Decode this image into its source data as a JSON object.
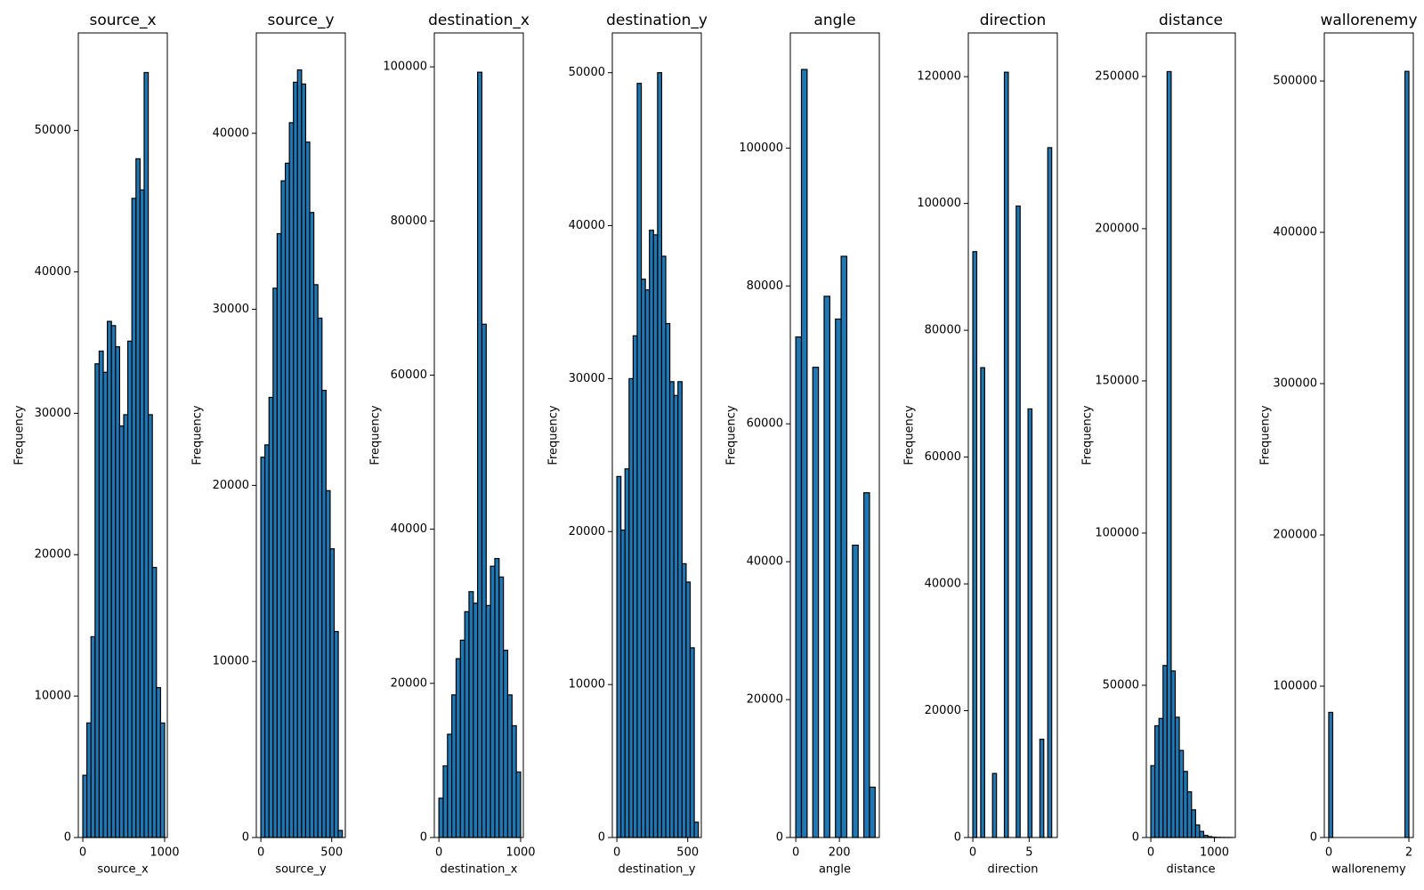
{
  "chart_data": [
    {
      "type": "histogram",
      "title": "source_x",
      "xlabel": "source_x",
      "ylabel": "Frequency",
      "color": "#1f77b4",
      "edgecolor": "#000000",
      "bins": [
        0,
        50,
        100,
        150,
        200,
        250,
        300,
        350,
        400,
        450,
        500,
        550,
        600,
        650,
        700,
        750,
        800,
        850,
        900,
        950,
        1000
      ],
      "counts": [
        4400,
        8100,
        14200,
        33500,
        34400,
        32900,
        36500,
        36200,
        34700,
        29100,
        29900,
        35100,
        45200,
        48000,
        45800,
        54100,
        29900,
        19100,
        10600,
        8100
      ],
      "xlim": [
        -55,
        1033
      ],
      "xticks": [
        0,
        1000
      ],
      "ylim": [
        0,
        56900
      ],
      "yticks": [
        0,
        10000,
        20000,
        30000,
        40000,
        50000
      ]
    },
    {
      "type": "histogram",
      "title": "source_y",
      "xlabel": "source_y",
      "ylabel": "Frequency",
      "color": "#1f77b4",
      "edgecolor": "#000000",
      "bins": [
        0,
        28.75,
        57.5,
        86.25,
        115,
        143.75,
        172.5,
        201.25,
        230,
        258.75,
        287.5,
        316.25,
        345,
        373.75,
        402.5,
        431.25,
        460,
        488.75,
        517.5,
        546.25,
        575
      ],
      "counts": [
        21600,
        22300,
        25000,
        31200,
        34300,
        37300,
        38300,
        40600,
        42900,
        43600,
        42800,
        39500,
        35500,
        31400,
        29500,
        25400,
        19700,
        16400,
        11700,
        400
      ],
      "xlim": [
        -32,
        596
      ],
      "xticks": [
        0,
        500
      ],
      "ylim": [
        0,
        45700
      ],
      "yticks": [
        0,
        10000,
        20000,
        30000,
        40000
      ]
    },
    {
      "type": "histogram",
      "title": "destination_x",
      "xlabel": "destination_x",
      "ylabel": "Frequency",
      "color": "#1f77b4",
      "edgecolor": "#000000",
      "bins": [
        0,
        52.6,
        105.3,
        157.9,
        210.5,
        263.2,
        315.8,
        368.4,
        421.1,
        473.7,
        526.3,
        578.9,
        631.6,
        684.2,
        736.8,
        789.5,
        842.1,
        894.7,
        947.4,
        1000
      ],
      "counts": [
        5100,
        9300,
        13400,
        18500,
        23200,
        25600,
        29300,
        31900,
        30400,
        99300,
        66600,
        30100,
        35200,
        36200,
        33800,
        24300,
        18500,
        14500,
        8500
      ],
      "xlim": [
        -56,
        1033
      ],
      "xticks": [
        0,
        1000
      ],
      "ylim": [
        0,
        104400
      ],
      "yticks": [
        0,
        20000,
        40000,
        60000,
        80000,
        100000
      ]
    },
    {
      "type": "histogram",
      "title": "destination_y",
      "xlabel": "destination_y",
      "ylabel": "Frequency",
      "color": "#1f77b4",
      "edgecolor": "#000000",
      "bins": [
        0,
        28.75,
        57.5,
        86.25,
        115,
        143.75,
        172.5,
        201.25,
        230,
        258.75,
        287.5,
        316.25,
        345,
        373.75,
        402.5,
        431.25,
        460,
        488.75,
        517.5,
        546.25,
        575
      ],
      "counts": [
        23600,
        20100,
        24100,
        30000,
        32800,
        49300,
        36500,
        35800,
        39700,
        39400,
        50000,
        38000,
        33600,
        29800,
        28900,
        29800,
        17900,
        16700,
        12400,
        1000
      ],
      "xlim": [
        -32,
        596
      ],
      "xticks": [
        0,
        500
      ],
      "ylim": [
        0,
        52600
      ],
      "yticks": [
        0,
        10000,
        20000,
        30000,
        40000,
        50000
      ]
    },
    {
      "type": "histogram",
      "title": "angle",
      "xlabel": "angle",
      "ylabel": "Frequency",
      "color": "#1f77b4",
      "edgecolor": "#000000",
      "bins": [
        0,
        26,
        52,
        78,
        104,
        130,
        156,
        182,
        208,
        234,
        260,
        286,
        312,
        338,
        364
      ],
      "counts": [
        72600,
        111400,
        0,
        68200,
        0,
        78500,
        0,
        75200,
        84300,
        0,
        42400,
        0,
        50000,
        7300
      ],
      "xlim": [
        -25,
        383
      ],
      "xticks": [
        0,
        200
      ],
      "ylim": [
        0,
        116700
      ],
      "yticks": [
        0,
        20000,
        40000,
        60000,
        80000,
        100000
      ]
    },
    {
      "type": "histogram",
      "title": "direction",
      "xlabel": "direction",
      "ylabel": "Frequency",
      "color": "#1f77b4",
      "edgecolor": "#000000",
      "bins": [
        0,
        0.35,
        0.7,
        1.05,
        1.4,
        1.75,
        2.1,
        2.45,
        2.8,
        3.15,
        3.5,
        3.85,
        4.2,
        4.55,
        4.9,
        5.25,
        5.6,
        5.95,
        6.3,
        6.65,
        7
      ],
      "counts": [
        92400,
        0,
        74100,
        0,
        0,
        10100,
        0,
        0,
        120700,
        0,
        0,
        99600,
        0,
        0,
        67600,
        0,
        0,
        15500,
        0,
        108800
      ],
      "xlim": [
        -0.4,
        7.5
      ],
      "xticks": [
        0,
        5
      ],
      "ylim": [
        0,
        126900
      ],
      "yticks": [
        0,
        20000,
        40000,
        60000,
        80000,
        100000,
        120000
      ]
    },
    {
      "type": "histogram",
      "title": "distance",
      "xlabel": "distance",
      "ylabel": "Frequency",
      "color": "#1f77b4",
      "edgecolor": "#000000",
      "bins": [
        0,
        64,
        128,
        192,
        256,
        320,
        384,
        448,
        512,
        576,
        640,
        704,
        768,
        832,
        896,
        960,
        1024,
        1088,
        1152,
        1216,
        1280
      ],
      "counts": [
        23600,
        36700,
        39100,
        56500,
        251600,
        54700,
        39500,
        28600,
        21700,
        15000,
        9100,
        4100,
        2000,
        700,
        300,
        100,
        50,
        20,
        10,
        5
      ],
      "xlim": [
        -71,
        1329
      ],
      "xticks": [
        0,
        1000
      ],
      "ylim": [
        0,
        264300
      ],
      "yticks": [
        0,
        50000,
        100000,
        150000,
        200000,
        250000
      ]
    },
    {
      "type": "histogram",
      "title": "wallorenemy",
      "xlabel": "wallorenemy",
      "ylabel": "Frequency",
      "color": "#1f77b4",
      "edgecolor": "#000000",
      "bins": [
        0,
        0.1,
        0.2,
        0.3,
        0.4,
        0.5,
        0.6,
        0.7,
        0.8,
        0.9,
        1,
        1.1,
        1.2,
        1.3,
        1.4,
        1.5,
        1.6,
        1.7,
        1.8,
        1.9,
        2
      ],
      "counts": [
        82700,
        0,
        0,
        0,
        0,
        0,
        0,
        0,
        0,
        0,
        0,
        0,
        0,
        0,
        0,
        0,
        0,
        0,
        0,
        506400
      ],
      "xlim": [
        -0.11,
        2.11
      ],
      "xticks": [
        0,
        2
      ],
      "ylim": [
        0,
        531800
      ],
      "yticks": [
        0,
        100000,
        200000,
        300000,
        400000,
        500000
      ]
    }
  ]
}
